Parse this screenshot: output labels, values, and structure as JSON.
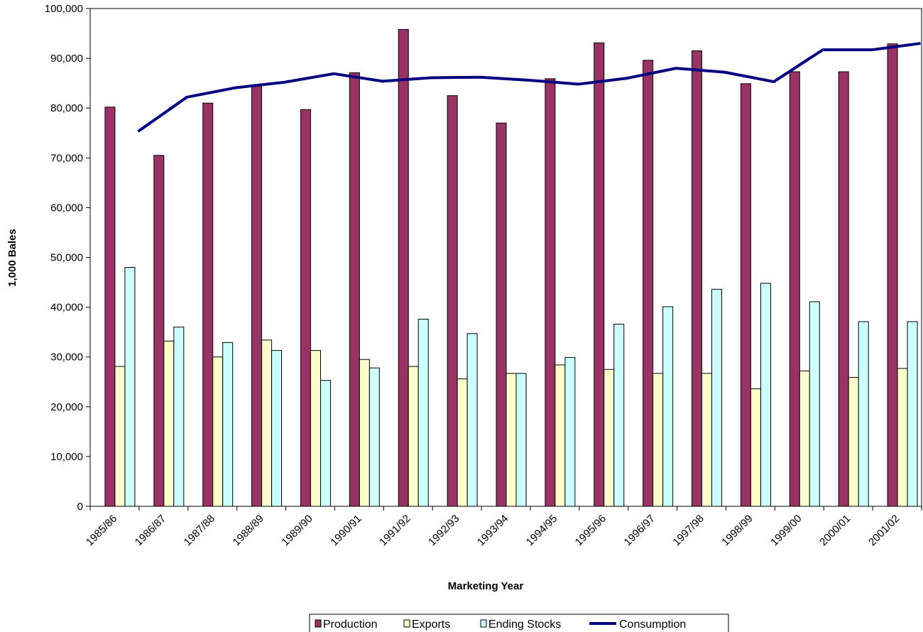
{
  "chart_data": {
    "type": "bar",
    "title": "",
    "xlabel": "Marketing Year",
    "ylabel": "1,000 Bales",
    "ylim": [
      0,
      100000
    ],
    "yticks": [
      "0",
      "10,000",
      "20,000",
      "30,000",
      "40,000",
      "50,000",
      "60,000",
      "70,000",
      "80,000",
      "90,000",
      "100,000"
    ],
    "ytick_values": [
      0,
      10000,
      20000,
      30000,
      40000,
      50000,
      60000,
      70000,
      80000,
      90000,
      100000
    ],
    "grid": false,
    "legend_position": "bottom",
    "categories": [
      "1985/86",
      "1986/87",
      "1987/88",
      "1988/89",
      "1989/90",
      "1990/91",
      "1991/92",
      "1992/93",
      "1993/94",
      "1994/95",
      "1995/96",
      "1996/97",
      "1997/98",
      "1998/99",
      "1999/00",
      "2000/01",
      "2001/02"
    ],
    "series": [
      {
        "name": "Production",
        "kind": "bar",
        "color": "#993366",
        "values": [
          80200,
          70500,
          81000,
          84400,
          79700,
          87100,
          95800,
          82500,
          77000,
          85900,
          93100,
          89600,
          91500,
          84900,
          87300,
          87300,
          92900
        ]
      },
      {
        "name": "Exports",
        "kind": "bar",
        "color": "#FFFFCC",
        "values": [
          28100,
          33200,
          30000,
          33400,
          31300,
          29500,
          28100,
          25600,
          26700,
          28400,
          27500,
          26700,
          26700,
          23600,
          27200,
          25900,
          27700
        ]
      },
      {
        "name": "Ending Stocks",
        "kind": "bar",
        "color": "#CCFFFF",
        "values": [
          48000,
          36000,
          32900,
          31300,
          25300,
          27800,
          37600,
          34700,
          26700,
          29900,
          36600,
          40100,
          43600,
          44800,
          41100,
          37100,
          37100
        ]
      },
      {
        "name": "Consumption",
        "kind": "line",
        "color": "#000080",
        "values": [
          75300,
          82200,
          84100,
          85200,
          86900,
          85400,
          86100,
          86200,
          85600,
          84800,
          86000,
          88000,
          87200,
          85300,
          91700,
          91700,
          93000
        ]
      }
    ]
  }
}
